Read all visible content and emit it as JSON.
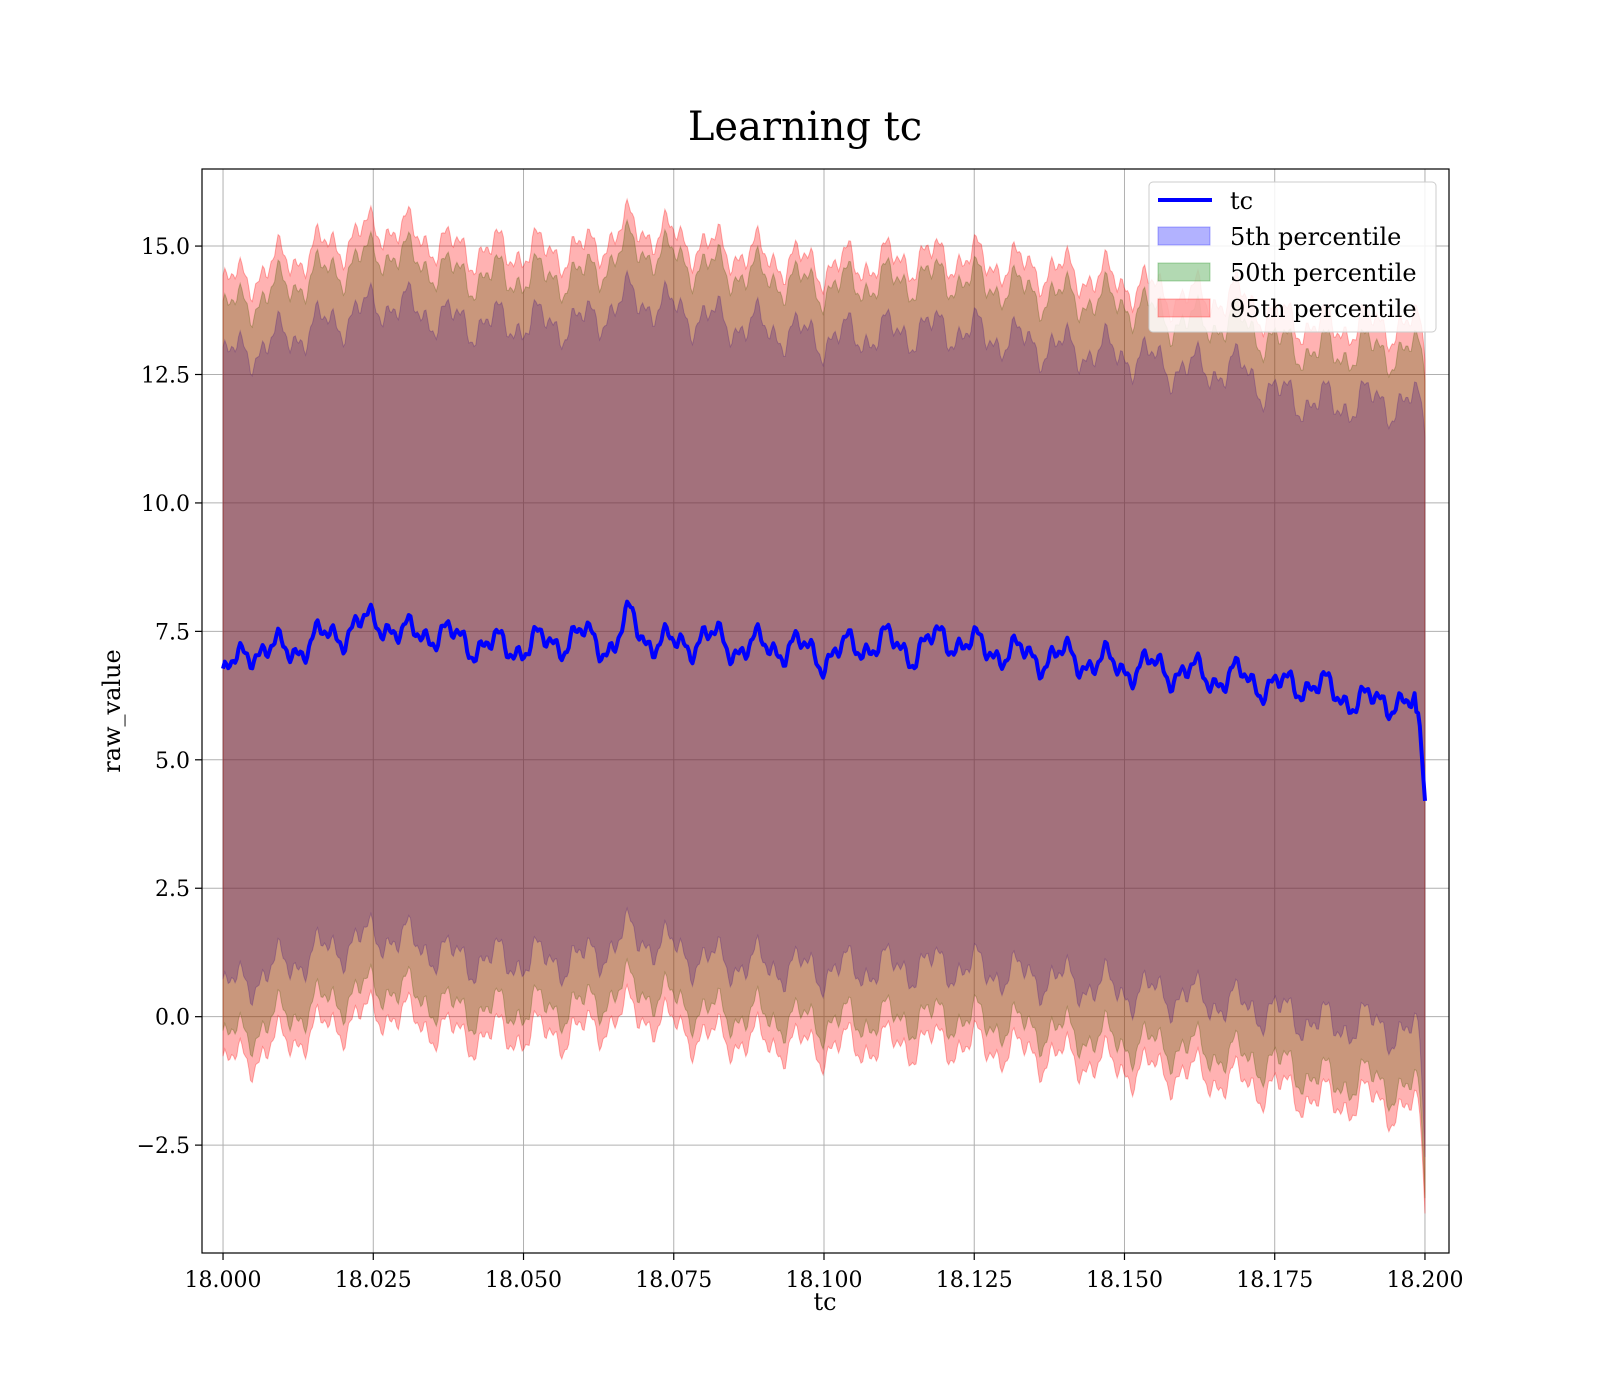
{
  "chart_data": {
    "type": "area",
    "title": "Learning tc",
    "xlabel": "tc",
    "ylabel": "raw_value",
    "xlim": [
      17.9965,
      18.204
    ],
    "ylim": [
      -4.6,
      16.5
    ],
    "x_ticks": [
      "18.000",
      "18.025",
      "18.050",
      "18.075",
      "18.100",
      "18.125",
      "18.150",
      "18.175",
      "18.200"
    ],
    "y_ticks": [
      "−2.5",
      "0.0",
      "2.5",
      "5.0",
      "7.5",
      "10.0",
      "12.5",
      "15.0"
    ],
    "x_tick_values": [
      18.0,
      18.025,
      18.05,
      18.075,
      18.1,
      18.125,
      18.15,
      18.175,
      18.2
    ],
    "y_tick_values": [
      -2.5,
      0.0,
      2.5,
      5.0,
      7.5,
      10.0,
      12.5,
      15.0
    ],
    "grid": true,
    "legend_position": "top-right",
    "x_range": [
      18.0,
      18.2
    ],
    "line": {
      "name": "tc",
      "color": "#0000ff",
      "x": [
        18.0,
        18.005,
        18.01,
        18.015,
        18.02,
        18.022,
        18.027,
        18.03,
        18.035,
        18.04,
        18.045,
        18.05,
        18.055,
        18.06,
        18.065,
        18.068,
        18.07,
        18.075,
        18.08,
        18.085,
        18.09,
        18.095,
        18.1,
        18.105,
        18.11,
        18.115,
        18.12,
        18.125,
        18.13,
        18.135,
        18.14,
        18.145,
        18.15,
        18.155,
        18.16,
        18.165,
        18.17,
        18.175,
        18.18,
        18.185,
        18.19,
        18.195,
        18.199,
        18.2
      ],
      "y": [
        6.6,
        7.2,
        7.1,
        7.3,
        7.5,
        7.6,
        7.7,
        7.4,
        7.5,
        7.3,
        7.2,
        7.2,
        7.3,
        7.4,
        7.2,
        7.8,
        7.4,
        7.2,
        7.4,
        7.2,
        7.2,
        7.2,
        7.0,
        7.2,
        7.3,
        7.1,
        7.4,
        7.2,
        7.1,
        7.0,
        7.0,
        6.9,
        6.8,
        6.8,
        6.7,
        6.6,
        6.6,
        6.4,
        6.5,
        6.3,
        6.1,
        6.2,
        5.9,
        4.2
      ]
    },
    "series": [
      {
        "name": "5th percentile",
        "color": "#0000ff",
        "x": [
          18.0,
          18.01,
          18.02,
          18.027,
          18.04,
          18.06,
          18.068,
          18.08,
          18.1,
          18.12,
          18.14,
          18.15,
          18.16,
          18.17,
          18.175,
          18.185,
          18.19,
          18.199,
          18.2
        ],
        "upper": [
          12.8,
          13.2,
          13.6,
          13.9,
          13.5,
          13.5,
          14.0,
          13.6,
          13.2,
          13.4,
          13.0,
          12.9,
          12.6,
          12.6,
          12.1,
          11.9,
          12.0,
          11.9,
          11.5
        ],
        "lower": [
          0.5,
          1.0,
          1.4,
          1.6,
          1.1,
          1.1,
          1.6,
          1.1,
          0.9,
          1.0,
          0.7,
          0.5,
          0.4,
          0.2,
          0.1,
          -0.2,
          -0.1,
          -0.4,
          -2.5
        ]
      },
      {
        "name": "50th percentile",
        "color": "#008000",
        "x": [
          18.0,
          18.01,
          18.02,
          18.027,
          18.04,
          18.06,
          18.068,
          18.08,
          18.1,
          18.12,
          18.14,
          18.15,
          18.16,
          18.17,
          18.175,
          18.185,
          18.19,
          18.199,
          18.2
        ],
        "upper": [
          13.7,
          14.2,
          14.6,
          14.9,
          14.4,
          14.4,
          15.0,
          14.6,
          14.2,
          14.4,
          14.0,
          13.9,
          13.5,
          13.5,
          13.1,
          12.9,
          13.0,
          12.9,
          12.6
        ],
        "lower": [
          -0.5,
          0.0,
          0.4,
          0.6,
          0.1,
          0.2,
          0.6,
          0.1,
          -0.1,
          0.0,
          -0.3,
          -0.5,
          -0.6,
          -0.8,
          -0.9,
          -1.3,
          -1.2,
          -1.5,
          -3.3
        ]
      },
      {
        "name": "95th percentile",
        "color": "#ff0000",
        "x": [
          18.0,
          18.01,
          18.02,
          18.027,
          18.04,
          18.06,
          18.068,
          18.08,
          18.1,
          18.12,
          18.14,
          18.15,
          18.16,
          18.17,
          18.175,
          18.185,
          18.19,
          18.199,
          18.2
        ],
        "upper": [
          14.2,
          14.7,
          15.1,
          15.4,
          14.9,
          14.9,
          15.4,
          15.0,
          14.6,
          14.8,
          14.5,
          14.3,
          14.0,
          14.0,
          13.6,
          13.4,
          13.5,
          13.4,
          13.0
        ],
        "lower": [
          -1.0,
          -0.5,
          -0.1,
          0.1,
          -0.4,
          -0.3,
          0.1,
          -0.4,
          -0.6,
          -0.5,
          -0.8,
          -1.0,
          -1.1,
          -1.3,
          -1.4,
          -1.7,
          -1.6,
          -1.9,
          -3.6
        ]
      }
    ]
  }
}
